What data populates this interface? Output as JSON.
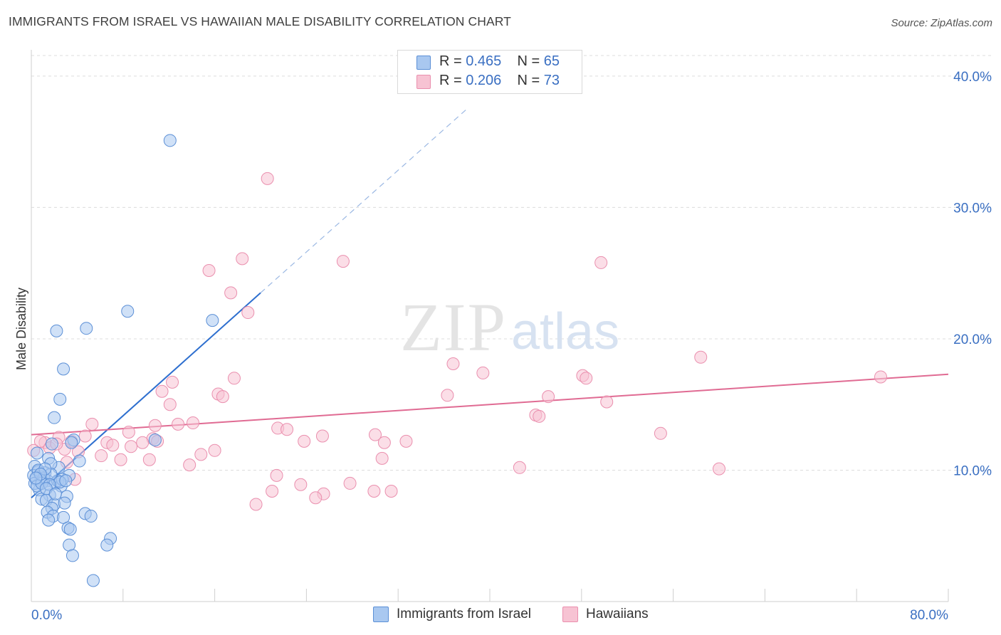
{
  "title": "IMMIGRANTS FROM ISRAEL VS HAWAIIAN MALE DISABILITY CORRELATION CHART",
  "source": "Source: ZipAtlas.com",
  "watermark": {
    "zip": "ZIP",
    "atlas": "atlas"
  },
  "legend_top": [
    {
      "r_label": "R = ",
      "r_value": "0.465",
      "n_label": "N = ",
      "n_value": "65"
    },
    {
      "r_label": "R = ",
      "r_value": "0.206",
      "n_label": "N = ",
      "n_value": "73"
    }
  ],
  "colors": {
    "israel_fill": "#a9c8f0",
    "israel_stroke": "#5b8fd6",
    "israel_line": "#2e6fcf",
    "hawaiian_fill": "#f7c3d3",
    "hawaiian_stroke": "#ea8fae",
    "hawaiian_line": "#e06b93",
    "tick_text": "#3a6fc2",
    "grid": "#dcdcdc"
  },
  "chart_data": {
    "type": "scatter",
    "title": "IMMIGRANTS FROM ISRAEL VS HAWAIIAN MALE DISABILITY CORRELATION CHART",
    "xlabel": "",
    "ylabel": "Male Disability",
    "xlim": [
      0,
      80
    ],
    "ylim": [
      0,
      42
    ],
    "x_tick_labels": [
      {
        "value": 0,
        "label": "0.0%"
      },
      {
        "value": 80,
        "label": "80.0%"
      }
    ],
    "y_tick_labels": [
      {
        "value": 10,
        "label": "10.0%"
      },
      {
        "value": 20,
        "label": "20.0%"
      },
      {
        "value": 30,
        "label": "30.0%"
      },
      {
        "value": 40,
        "label": "40.0%"
      }
    ],
    "grid": true,
    "series": [
      {
        "name": "Immigrants from Israel",
        "r": 0.465,
        "n": 65,
        "trend": {
          "x0": 0,
          "y0": 7.9,
          "x1": 20,
          "y1": 23.5,
          "dash_to_x": 38,
          "dash_to_y": 37.5
        },
        "points": [
          [
            12.1,
            35.1
          ],
          [
            8.4,
            22.1
          ],
          [
            15.8,
            21.4
          ],
          [
            2.2,
            20.6
          ],
          [
            4.8,
            20.8
          ],
          [
            2.8,
            17.7
          ],
          [
            2.5,
            15.4
          ],
          [
            2.0,
            14.0
          ],
          [
            3.7,
            12.3
          ],
          [
            10.8,
            12.3
          ],
          [
            1.8,
            12.0
          ],
          [
            3.5,
            12.1
          ],
          [
            0.5,
            11.3
          ],
          [
            2.4,
            10.2
          ],
          [
            4.2,
            10.7
          ],
          [
            1.5,
            10.9
          ],
          [
            1.7,
            10.5
          ],
          [
            0.3,
            10.3
          ],
          [
            0.6,
            9.9
          ],
          [
            1.2,
            9.8
          ],
          [
            3.3,
            9.6
          ],
          [
            0.8,
            9.5
          ],
          [
            1.4,
            9.2
          ],
          [
            2.1,
            9.0
          ],
          [
            0.4,
            9.3
          ],
          [
            1.0,
            9.1
          ],
          [
            2.6,
            8.8
          ],
          [
            0.7,
            8.5
          ],
          [
            1.6,
            8.1
          ],
          [
            0.9,
            7.8
          ],
          [
            1.3,
            7.7
          ],
          [
            3.1,
            8.0
          ],
          [
            2.0,
            7.4
          ],
          [
            2.9,
            7.5
          ],
          [
            1.8,
            7.1
          ],
          [
            1.4,
            6.8
          ],
          [
            1.9,
            6.5
          ],
          [
            2.8,
            6.4
          ],
          [
            1.5,
            6.2
          ],
          [
            4.7,
            6.7
          ],
          [
            5.2,
            6.5
          ],
          [
            3.2,
            5.6
          ],
          [
            3.4,
            5.5
          ],
          [
            6.9,
            4.8
          ],
          [
            3.3,
            4.3
          ],
          [
            6.6,
            4.3
          ],
          [
            3.6,
            3.5
          ],
          [
            5.4,
            1.6
          ],
          [
            0.2,
            9.6
          ],
          [
            0.6,
            10.0
          ],
          [
            1.1,
            9.4
          ],
          [
            2.3,
            9.2
          ],
          [
            0.3,
            9.0
          ],
          [
            1.7,
            9.7
          ],
          [
            2.7,
            9.3
          ],
          [
            0.5,
            8.8
          ],
          [
            1.2,
            10.1
          ],
          [
            0.9,
            9.0
          ],
          [
            2.5,
            9.1
          ],
          [
            1.6,
            8.9
          ],
          [
            0.8,
            9.7
          ],
          [
            3.0,
            9.2
          ],
          [
            1.3,
            8.6
          ],
          [
            2.1,
            8.2
          ],
          [
            0.4,
            9.4
          ]
        ]
      },
      {
        "name": "Hawaiians",
        "r": 0.206,
        "n": 73,
        "trend": {
          "x0": 0,
          "y0": 12.7,
          "x1": 80,
          "y1": 17.3
        },
        "points": [
          [
            20.6,
            32.2
          ],
          [
            27.2,
            25.9
          ],
          [
            18.4,
            26.1
          ],
          [
            49.7,
            25.8
          ],
          [
            15.5,
            25.2
          ],
          [
            17.4,
            23.5
          ],
          [
            18.9,
            22.0
          ],
          [
            36.8,
            18.1
          ],
          [
            58.4,
            18.6
          ],
          [
            39.4,
            17.4
          ],
          [
            48.1,
            17.2
          ],
          [
            48.4,
            17.0
          ],
          [
            74.1,
            17.1
          ],
          [
            12.3,
            16.7
          ],
          [
            17.7,
            17.0
          ],
          [
            11.4,
            16.0
          ],
          [
            16.3,
            15.8
          ],
          [
            16.7,
            15.6
          ],
          [
            36.3,
            15.7
          ],
          [
            45.1,
            15.6
          ],
          [
            50.2,
            15.2
          ],
          [
            12.1,
            15.0
          ],
          [
            44.0,
            14.2
          ],
          [
            44.3,
            14.1
          ],
          [
            5.3,
            13.5
          ],
          [
            10.8,
            13.4
          ],
          [
            12.8,
            13.5
          ],
          [
            14.1,
            13.6
          ],
          [
            21.5,
            13.2
          ],
          [
            22.3,
            13.1
          ],
          [
            8.5,
            12.9
          ],
          [
            30.0,
            12.7
          ],
          [
            25.4,
            12.6
          ],
          [
            2.4,
            12.5
          ],
          [
            3.5,
            12.2
          ],
          [
            4.7,
            12.6
          ],
          [
            6.6,
            12.1
          ],
          [
            7.1,
            11.9
          ],
          [
            8.7,
            11.8
          ],
          [
            10.6,
            12.4
          ],
          [
            11.0,
            12.2
          ],
          [
            9.7,
            12.1
          ],
          [
            1.2,
            12.1
          ],
          [
            0.8,
            12.2
          ],
          [
            23.8,
            12.2
          ],
          [
            30.8,
            12.1
          ],
          [
            32.7,
            12.2
          ],
          [
            54.9,
            12.8
          ],
          [
            2.9,
            11.6
          ],
          [
            1.6,
            11.7
          ],
          [
            16.0,
            11.5
          ],
          [
            14.8,
            11.2
          ],
          [
            0.2,
            11.5
          ],
          [
            6.1,
            11.1
          ],
          [
            10.3,
            10.8
          ],
          [
            30.6,
            10.9
          ],
          [
            3.1,
            10.6
          ],
          [
            7.8,
            10.8
          ],
          [
            13.8,
            10.4
          ],
          [
            42.6,
            10.2
          ],
          [
            60.0,
            10.1
          ],
          [
            21.4,
            9.6
          ],
          [
            23.5,
            8.9
          ],
          [
            27.8,
            9.0
          ],
          [
            3.8,
            9.3
          ],
          [
            21.0,
            8.4
          ],
          [
            25.5,
            8.2
          ],
          [
            24.8,
            7.9
          ],
          [
            29.9,
            8.4
          ],
          [
            31.4,
            8.4
          ],
          [
            19.6,
            7.4
          ],
          [
            2.2,
            12.0
          ],
          [
            4.1,
            11.4
          ]
        ]
      }
    ]
  },
  "legend_bottom": [
    "Immigrants from Israel",
    "Hawaiians"
  ]
}
